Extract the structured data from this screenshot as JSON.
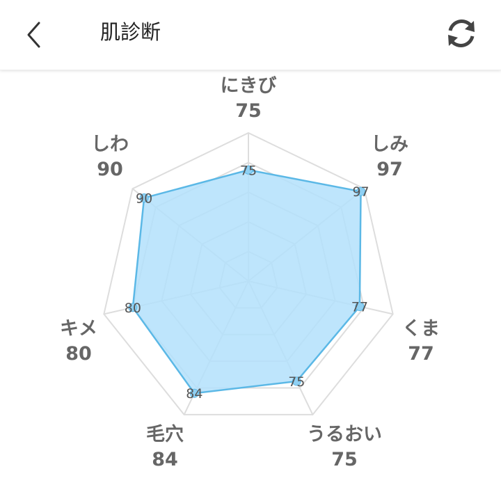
{
  "header": {
    "title": "肌診断",
    "back_icon": "chevron-left-icon",
    "refresh_icon": "refresh-icon"
  },
  "chart_data": {
    "type": "radar",
    "categories": [
      "にきび",
      "しみ",
      "くま",
      "うるおい",
      "毛穴",
      "キメ",
      "しわ"
    ],
    "values": [
      75,
      97,
      77,
      75,
      84,
      80,
      90
    ],
    "data_labels": [
      "75",
      "97",
      "77",
      "75",
      "84",
      "80",
      "90"
    ],
    "range": [
      0,
      100
    ],
    "grid_levels": 5,
    "grid": true,
    "colors": {
      "fill": "#b3e1fb",
      "stroke": "#5bb8e6",
      "grid": "#dddddd",
      "label": "#666666"
    }
  }
}
